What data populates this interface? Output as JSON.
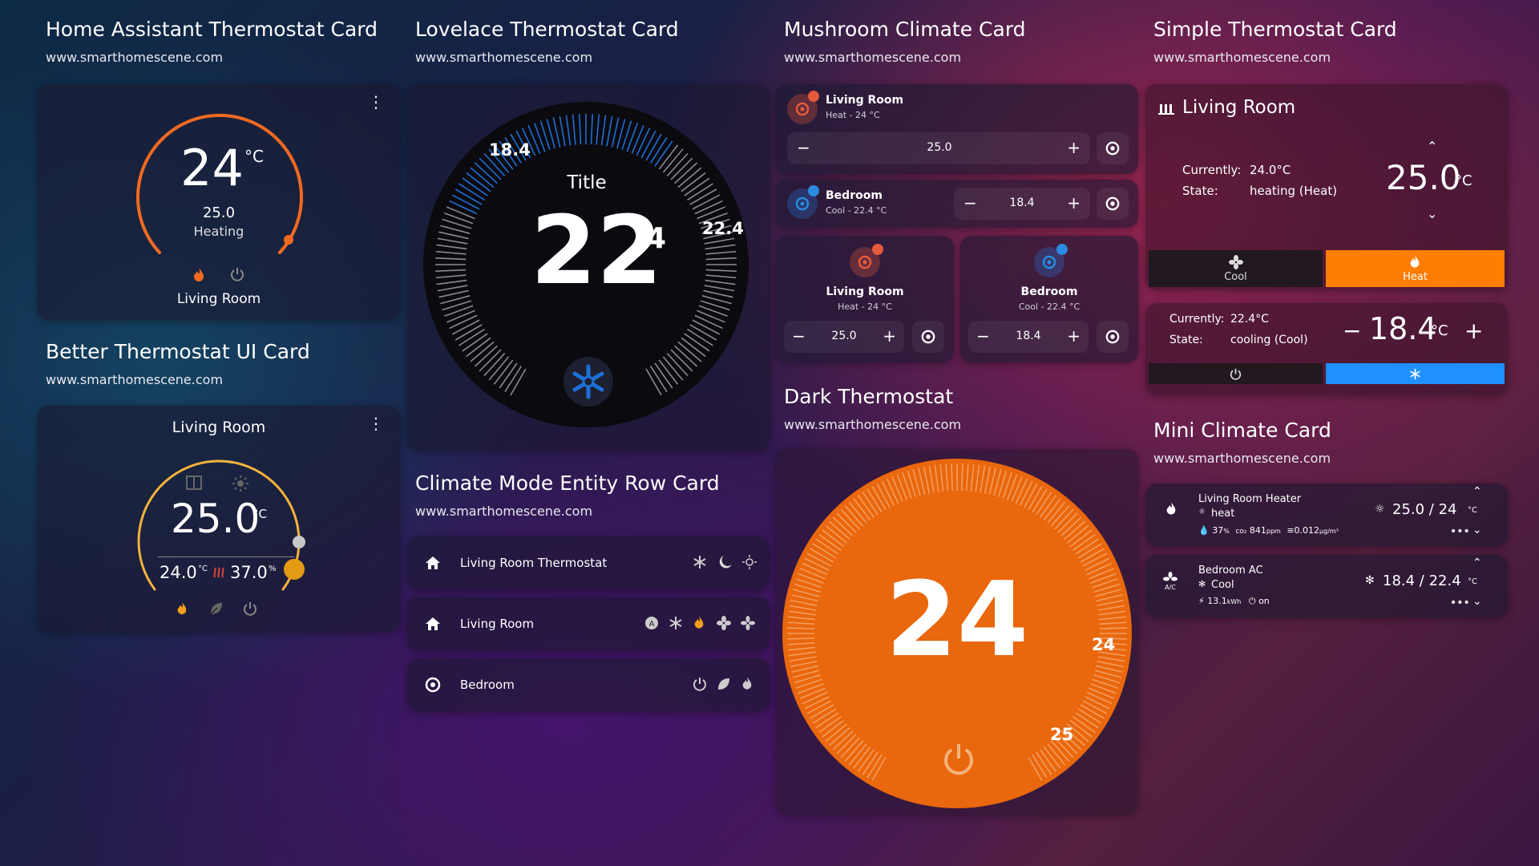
{
  "sections": {
    "ha": {
      "title": "Home Assistant Thermostat Card",
      "url": "www.smarthomescene.com"
    },
    "lovelace": {
      "title": "Lovelace Thermostat Card",
      "url": "www.smarthomescene.com"
    },
    "mushroom": {
      "title": "Mushroom Climate Card",
      "url": "www.smarthomescene.com"
    },
    "simple": {
      "title": "Simple Thermostat Card",
      "url": "www.smarthomescene.com"
    },
    "better": {
      "title": "Better Thermostat UI Card",
      "url": "www.smarthomescene.com"
    },
    "climate_mode": {
      "title": "Climate Mode Entity Row Card",
      "url": "www.smarthomescene.com"
    },
    "dark": {
      "title": "Dark Thermostat",
      "url": "www.smarthomescene.com"
    },
    "mini": {
      "title": "Mini Climate Card",
      "url": "www.smarthomescene.com"
    }
  },
  "ha_card": {
    "current": "24",
    "unit": "°C",
    "target": "25.0",
    "mode": "Heating",
    "name": "Living Room",
    "menu": "⋮"
  },
  "better_card": {
    "name": "Living Room",
    "target": "25.0",
    "unit": "°C",
    "current": "24.0",
    "current_unit": "°C",
    "humidity": "37.0",
    "humidity_unit": "%",
    "menu": "⋮"
  },
  "lovelace_card": {
    "title": "Title",
    "current_int": "22",
    "current_dec": "4",
    "low": "18.4",
    "high": "22.4"
  },
  "climate_rows": [
    {
      "name": "Living Room Thermostat",
      "icons": [
        "snowflake-icon",
        "moon-icon",
        "sun-icon"
      ]
    },
    {
      "name": "Living Room",
      "icons": [
        "auto-icon",
        "snowflake-icon",
        "flame-icon",
        "fan-icon",
        "fan-alt-icon"
      ]
    },
    {
      "name": "Bedroom",
      "icons": [
        "power-icon",
        "leaf-icon",
        "flame-icon"
      ]
    }
  ],
  "mushroom": {
    "card1": {
      "name": "Living Room",
      "state": "Heat - 24 °C",
      "value": "25.0",
      "minus": "−",
      "plus": "+"
    },
    "card2": {
      "name": "Bedroom",
      "state": "Cool - 22.4 °C",
      "value": "18.4",
      "minus": "−",
      "plus": "+"
    },
    "card3": {
      "name": "Living Room",
      "state": "Heat - 24 °C",
      "value": "25.0",
      "minus": "−",
      "plus": "+"
    },
    "card4": {
      "name": "Bedroom",
      "state": "Cool - 22.4 °C",
      "value": "18.4",
      "minus": "−",
      "plus": "+"
    }
  },
  "dark_card": {
    "current": "24",
    "tick_current": "24",
    "tick_target": "25"
  },
  "simple_card": {
    "title": "Living Room",
    "currently_label": "Currently:",
    "currently": "24.0°C",
    "state_label": "State:",
    "state": "heating (Heat)",
    "target": "25.0",
    "unit": "°C",
    "cool_label": "Cool",
    "heat_label": "Heat",
    "colors": {
      "heat": "#ff7d00",
      "cool": "#1e90ff"
    }
  },
  "simple_card2": {
    "currently_label": "Currently:",
    "currently": "22.4°C",
    "state_label": "State:",
    "state": "cooling (Cool)",
    "minus": "−",
    "target": "18.4",
    "unit": "°C",
    "plus": "+"
  },
  "mini": {
    "card1": {
      "name": "Living Room Heater",
      "mode": "heat",
      "value": "25.0 / 24",
      "unit": "°C",
      "humidity": "37",
      "humidity_unit": "%",
      "co2_label": "co₂",
      "co2": "841",
      "co2_unit": "ppm",
      "pm": "0.012",
      "pm_unit": "μg/m³"
    },
    "card2": {
      "name": "Bedroom AC",
      "mode": "Cool",
      "value": "18.4 / 22.4",
      "unit": "°C",
      "energy": "13.1",
      "energy_unit": "kWh",
      "plug": "on"
    }
  }
}
